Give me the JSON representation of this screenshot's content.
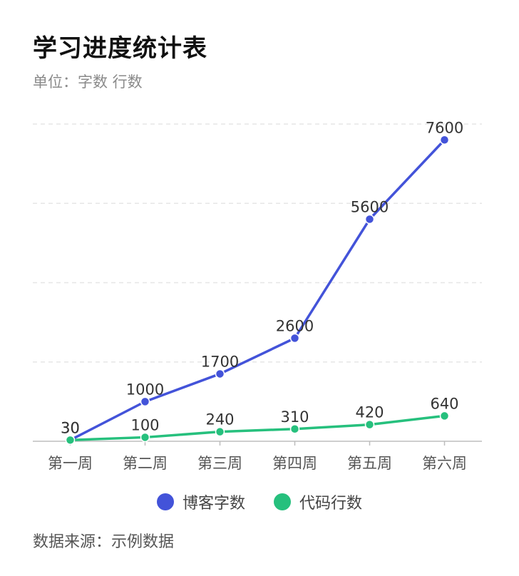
{
  "header": {
    "title": "学习进度统计表",
    "subtitle": "单位：字数 行数"
  },
  "footer": {
    "source": "数据来源：示例数据"
  },
  "colors": {
    "blog": "#4353d9",
    "code": "#26c07d",
    "grid": "#e6e6e6",
    "axis": "#bdbdbd"
  },
  "chart_data": {
    "type": "line",
    "title": "学习进度统计表",
    "subtitle": "单位：字数 行数",
    "categories": [
      "第一周",
      "第二周",
      "第三周",
      "第四周",
      "第五周",
      "第六周"
    ],
    "series": [
      {
        "name": "博客字数",
        "color": "#4353d9",
        "values": [
          30,
          1000,
          1700,
          2600,
          5600,
          7600
        ]
      },
      {
        "name": "代码行数",
        "color": "#26c07d",
        "values": [
          30,
          100,
          240,
          310,
          420,
          640
        ]
      }
    ],
    "ylim": [
      0,
      8000
    ],
    "grid": true,
    "data_labels": true,
    "legend_position": "bottom"
  }
}
